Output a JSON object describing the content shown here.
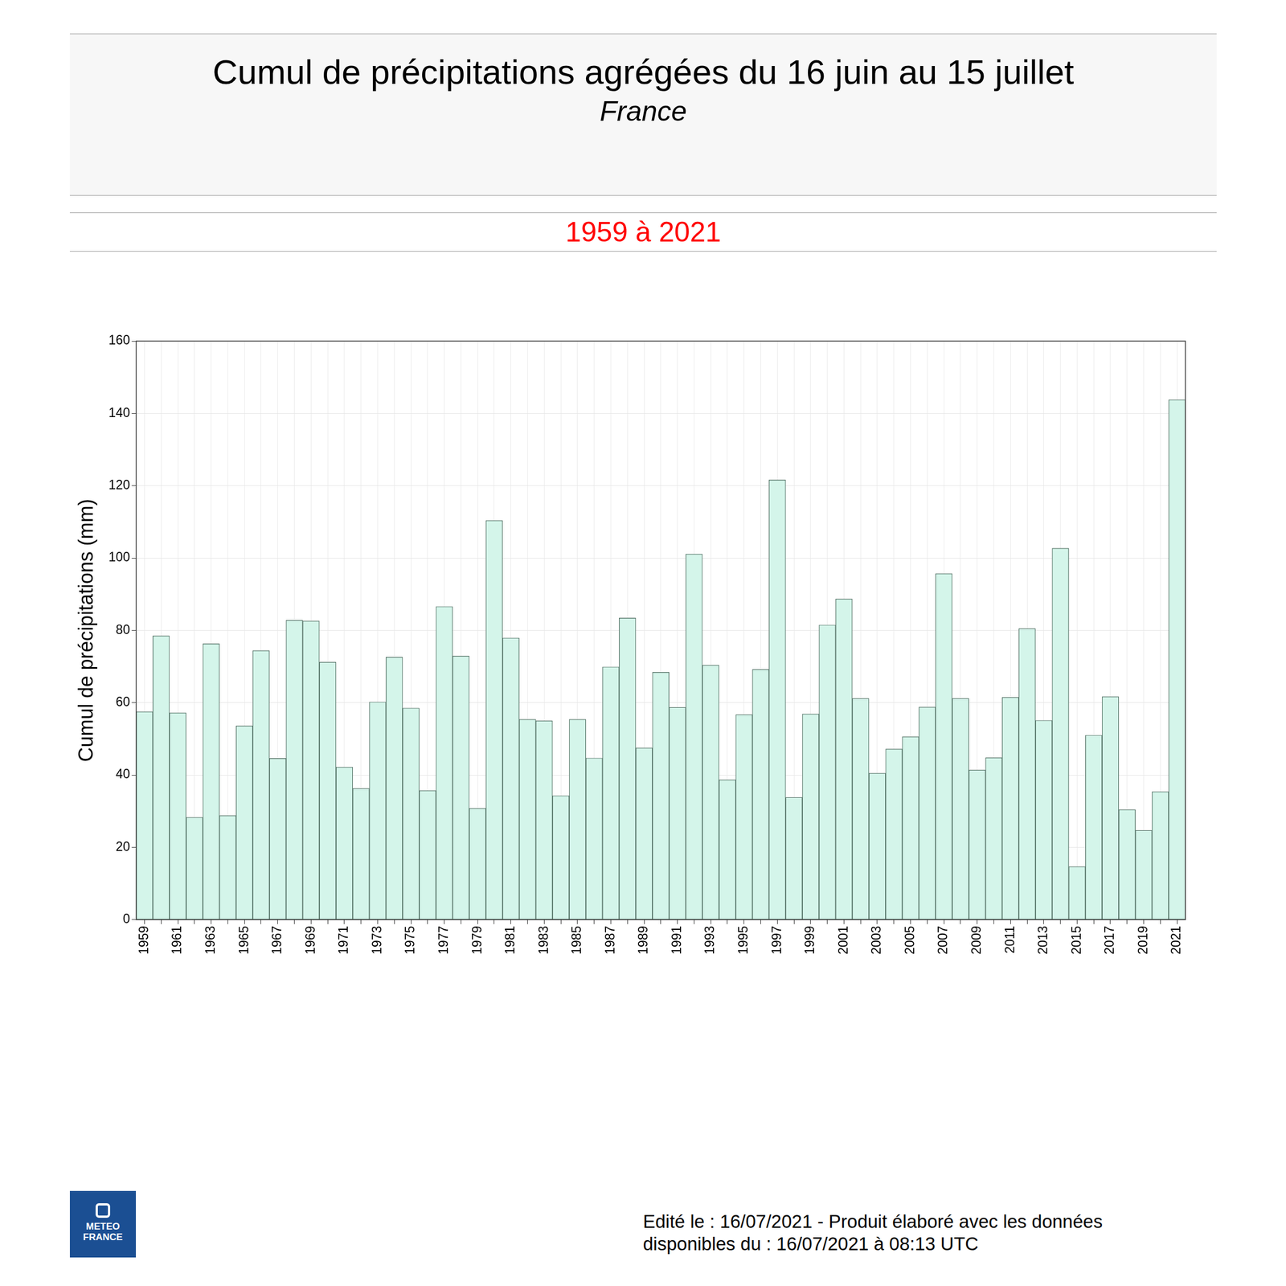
{
  "chart_data": {
    "type": "bar",
    "title": "Cumul de précipitations agrégées du 16 juin au 15 juillet",
    "subtitle": "France",
    "y_label": "Cumul de précipitations (mm)",
    "categories": [
      "1959",
      null,
      "1961",
      null,
      "1963",
      null,
      "1965",
      null,
      "1967",
      null,
      "1969",
      null,
      "1971",
      null,
      "1973",
      null,
      "1975",
      null,
      "1977",
      null,
      "1979",
      null,
      "1981",
      null,
      "1983",
      null,
      "1985",
      null,
      "1987",
      null,
      "1989",
      null,
      "1991",
      null,
      "1993",
      null,
      "1995",
      null,
      "1997",
      null,
      "1999",
      null,
      "2001",
      null,
      "2003",
      null,
      "2005",
      null,
      "2007",
      null,
      "2009",
      null,
      "2011",
      null,
      "2013",
      null,
      "2015",
      null,
      "2017",
      null,
      "2019",
      null,
      "2021"
    ],
    "values": [
      57.5,
      78.5,
      57.2,
      28.3,
      76.3,
      28.8,
      53.6,
      74.4,
      44.6,
      82.8,
      82.6,
      71.2,
      42.2,
      36.3,
      60.2,
      72.6,
      58.5,
      35.7,
      86.6,
      72.9,
      30.8,
      110.4,
      77.9,
      55.4,
      55.0,
      34.3,
      55.4,
      44.7,
      69.9,
      83.4,
      47.5,
      68.4,
      58.7,
      101.1,
      70.4,
      38.7,
      56.7,
      69.2,
      121.6,
      33.8,
      56.9,
      81.5,
      88.7,
      61.2,
      40.5,
      47.2,
      50.6,
      58.8,
      95.7,
      61.2,
      41.4,
      44.8,
      61.5,
      80.5,
      55.1,
      102.7,
      14.7,
      51.0,
      61.7,
      30.4,
      24.7,
      35.4,
      143.8
    ],
    "color": "#d4f5ea",
    "ylim": [
      0,
      160
    ],
    "yticks": [
      0,
      20,
      40,
      60,
      80,
      100,
      120,
      140,
      160
    ],
    "grid": true
  },
  "page": {
    "period": "1959 à 2021",
    "logo": [
      "METEO",
      "FRANCE"
    ],
    "footer": [
      "Edité le : 16/07/2021 - Produit élaboré avec les données",
      "disponibles du : 16/07/2021 à 08:13 UTC"
    ]
  }
}
